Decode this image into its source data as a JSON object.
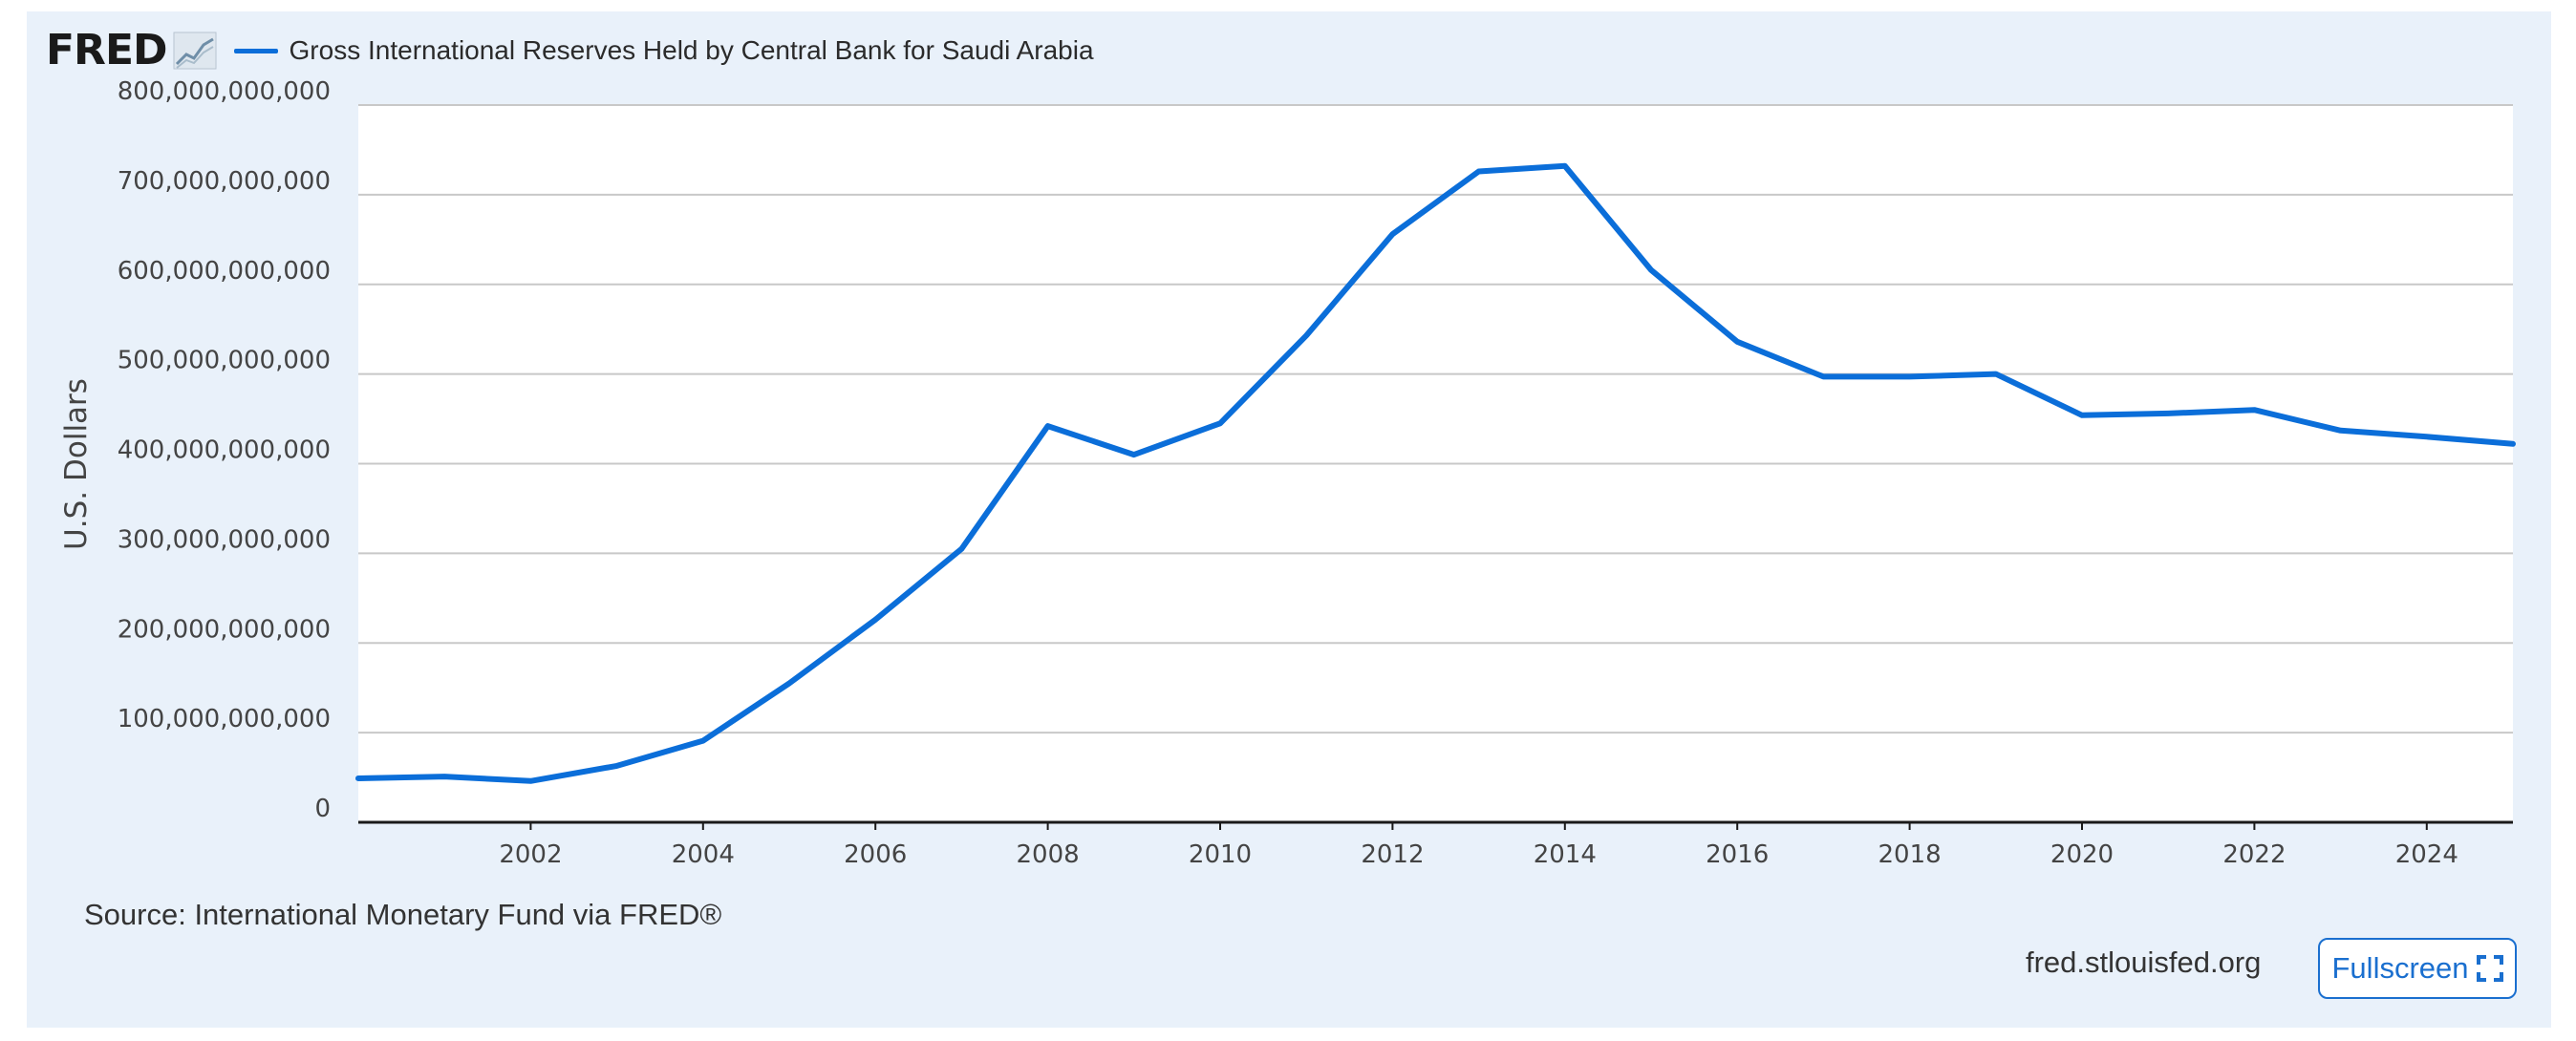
{
  "brand": {
    "logo_text": "FRED",
    "logo_icon": "chart-line-icon"
  },
  "legend": {
    "label": "Gross International Reserves Held by Central Bank for Saudi Arabia",
    "color": "#0b6ed9"
  },
  "chart_data": {
    "type": "line",
    "title": "",
    "xlabel": "",
    "ylabel": "U.S. Dollars",
    "xlim": [
      2000,
      2025
    ],
    "ylim": [
      0,
      800000000000
    ],
    "y_ticks": [
      {
        "value": 0,
        "label": "0"
      },
      {
        "value": 100000000000,
        "label": "100,000,000,000"
      },
      {
        "value": 200000000000,
        "label": "200,000,000,000"
      },
      {
        "value": 300000000000,
        "label": "300,000,000,000"
      },
      {
        "value": 400000000000,
        "label": "400,000,000,000"
      },
      {
        "value": 500000000000,
        "label": "500,000,000,000"
      },
      {
        "value": 600000000000,
        "label": "600,000,000,000"
      },
      {
        "value": 700000000000,
        "label": "700,000,000,000"
      },
      {
        "value": 800000000000,
        "label": "800,000,000,000"
      }
    ],
    "x_ticks": [
      {
        "value": 2002,
        "label": "2002"
      },
      {
        "value": 2004,
        "label": "2004"
      },
      {
        "value": 2006,
        "label": "2006"
      },
      {
        "value": 2008,
        "label": "2008"
      },
      {
        "value": 2010,
        "label": "2010"
      },
      {
        "value": 2012,
        "label": "2012"
      },
      {
        "value": 2014,
        "label": "2014"
      },
      {
        "value": 2016,
        "label": "2016"
      },
      {
        "value": 2018,
        "label": "2018"
      },
      {
        "value": 2020,
        "label": "2020"
      },
      {
        "value": 2022,
        "label": "2022"
      },
      {
        "value": 2024,
        "label": "2024"
      }
    ],
    "grid": true,
    "series": [
      {
        "name": "Gross International Reserves Held by Central Bank for Saudi Arabia",
        "color": "#0b6ed9",
        "x": [
          2000,
          2001,
          2002,
          2003,
          2004,
          2005,
          2006,
          2007,
          2008,
          2009,
          2010,
          2011,
          2012,
          2013,
          2014,
          2015,
          2016,
          2017,
          2018,
          2019,
          2020,
          2021,
          2022,
          2023,
          2024,
          2025
        ],
        "values": [
          49000000000,
          51000000000,
          46000000000,
          63000000000,
          91000000000,
          155000000000,
          226000000000,
          305000000000,
          442000000000,
          410000000000,
          445000000000,
          543000000000,
          656000000000,
          726000000000,
          732000000000,
          616000000000,
          536000000000,
          497000000000,
          497000000000,
          500000000000,
          454000000000,
          456000000000,
          460000000000,
          437000000000,
          430000000000,
          422000000000
        ]
      }
    ]
  },
  "footer": {
    "source": "Source: International Monetary Fund via FRED®",
    "site": "fred.stlouisfed.org",
    "fullscreen_label": "Fullscreen",
    "fullscreen_icon": "expand-icon"
  }
}
